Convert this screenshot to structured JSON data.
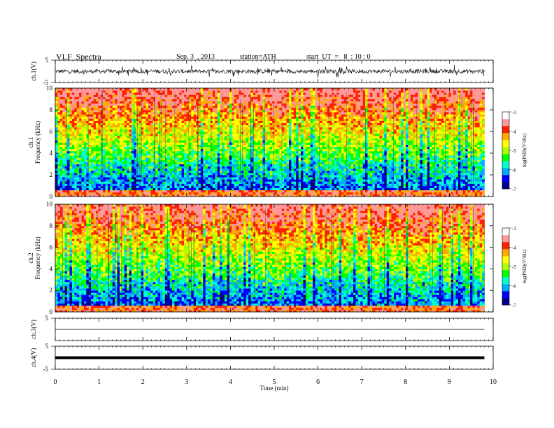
{
  "header": {
    "title": "VLF  Spectra",
    "date": "Sep. 3  , 2013",
    "station": "station=ATH",
    "start": "start  UT  =   8  : 10 : 0"
  },
  "chart_data": [
    {
      "type": "line",
      "panel": "ch1-waveform",
      "ylabel": "ch.1(V)",
      "yticks": [
        "5",
        "-5"
      ],
      "ylim": [
        -5,
        5
      ],
      "xlim": [
        0,
        10
      ],
      "data_end_min": 9.8,
      "baseline_v": 0.0,
      "spread_v": 0.9
    },
    {
      "type": "heatmap",
      "panel": "ch1-spectrogram",
      "ylabel": "ch.1\nFrequency (kHz)",
      "ylim": [
        0,
        10
      ],
      "yticks": [
        "0",
        "2",
        "4",
        "6",
        "8",
        "10"
      ],
      "xlim": [
        0,
        10
      ],
      "data_end_min": 9.8,
      "colorbar": {
        "label": "log(PSD)(V²/Hz)",
        "range": [
          -7,
          -3
        ],
        "ticks": [
          "-3",
          "-4",
          "-5",
          "-6",
          "-7"
        ]
      }
    },
    {
      "type": "heatmap",
      "panel": "ch2-spectrogram",
      "ylabel": "ch.2\nFrequency (kHz)",
      "ylim": [
        0,
        10
      ],
      "yticks": [
        "0",
        "2",
        "4",
        "6",
        "8",
        "10"
      ],
      "xlim": [
        0,
        10
      ],
      "data_end_min": 9.8,
      "colorbar": {
        "label": "log(PSD)(V²/Hz)",
        "range": [
          -7,
          -3
        ],
        "ticks": [
          "-3",
          "-4",
          "-5",
          "-6",
          "-7"
        ]
      }
    },
    {
      "type": "line",
      "panel": "ch3-waveform",
      "ylabel": "ch.3(V)",
      "yticks": [
        "5"
      ],
      "ylim": [
        -5,
        5
      ],
      "xlim": [
        0,
        10
      ],
      "data_end_min": 9.8,
      "baseline_v": 0.0,
      "spread_v": 0.05
    },
    {
      "type": "line",
      "panel": "ch4-waveform",
      "ylabel": "ch.4(V)",
      "yticks": [
        "5",
        "-5"
      ],
      "ylim": [
        -5,
        5
      ],
      "xlim": [
        0,
        10
      ],
      "data_end_min": 9.8,
      "baseline_v": 0.0,
      "spread_v": 0.0
    }
  ],
  "xaxis": {
    "label": "Time  (min)",
    "ticks": [
      "0",
      "1",
      "2",
      "3",
      "4",
      "5",
      "6",
      "7",
      "8",
      "9",
      "10"
    ]
  },
  "colors": {
    "spectrum": [
      "#000088",
      "#0000ff",
      "#00aaff",
      "#00ffcc",
      "#00ff00",
      "#aaff00",
      "#ffff00",
      "#ffaa00",
      "#ff2200",
      "#ff9999",
      "#ffffff"
    ]
  }
}
